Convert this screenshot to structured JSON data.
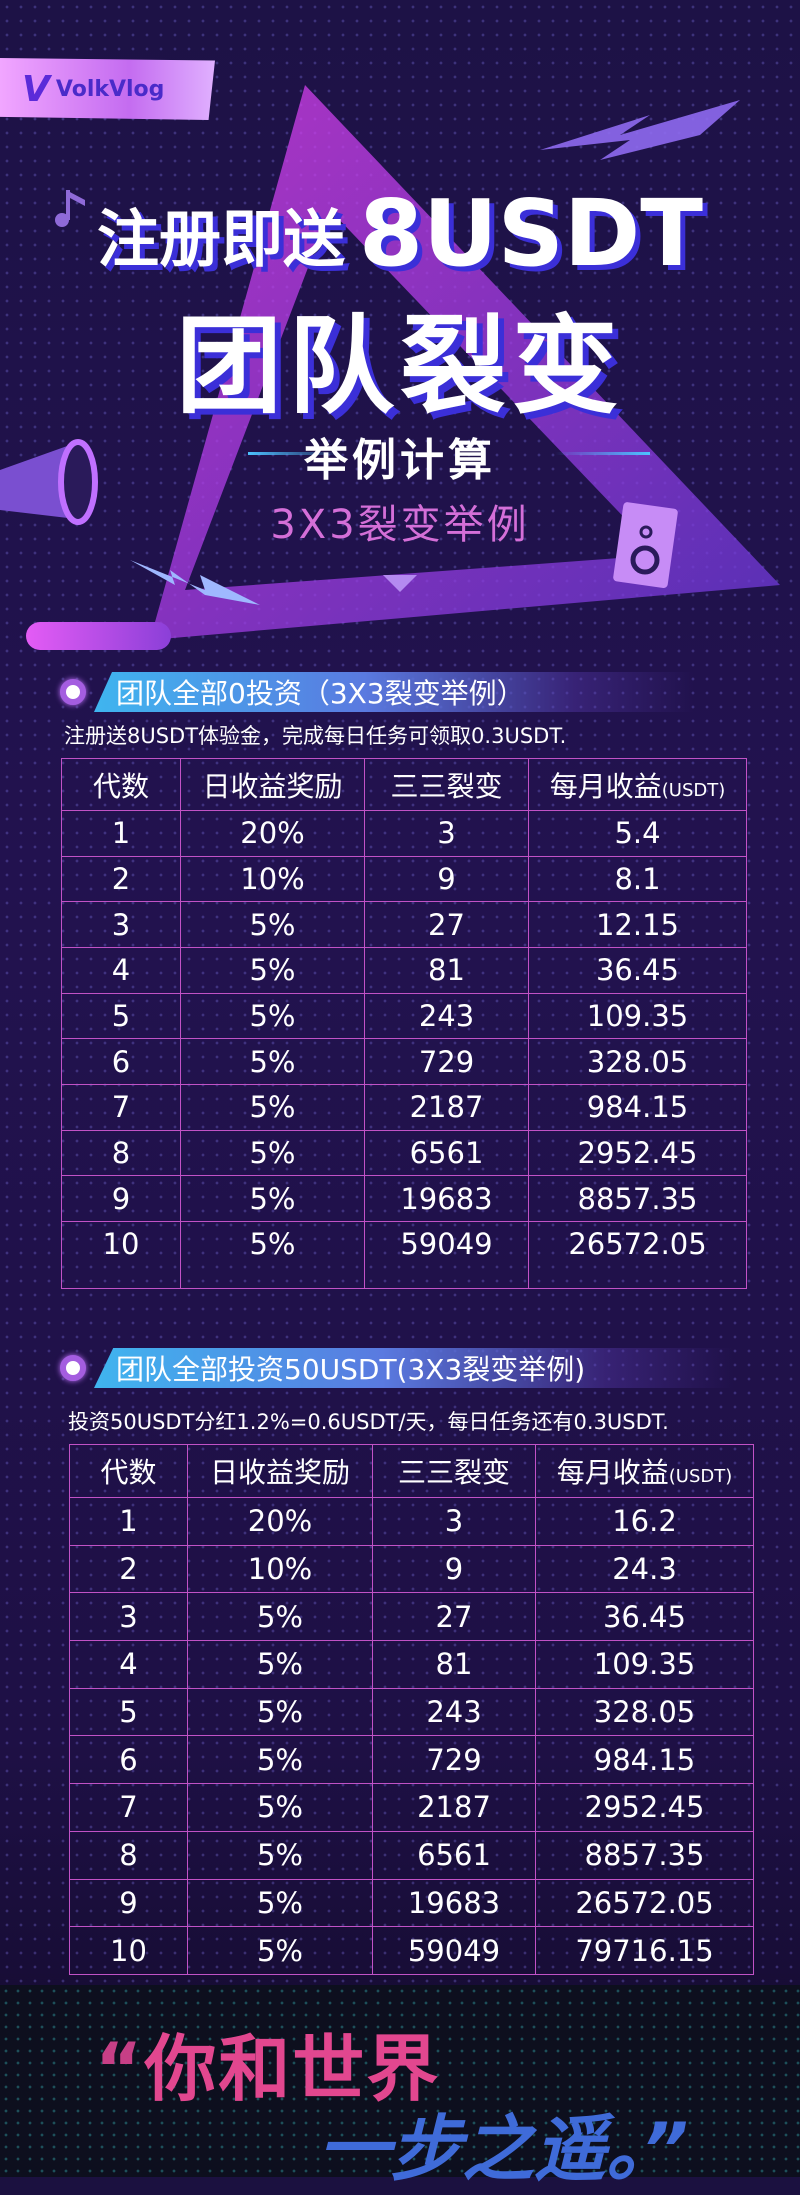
{
  "colors": {
    "background": "#1b1140",
    "accent_pink": "#d46fd8",
    "shadow_blue": "#3b2fd8",
    "table_border": "#c152c6",
    "footer_pink": "#e2478f",
    "footer_blue": "#3f6bd9"
  },
  "logo": {
    "mark": "V",
    "text": "VolkVlog"
  },
  "hero": {
    "line1_cn": "注册即送",
    "line1_big": "8USDT",
    "line2": "团队裂变",
    "subtitle": "举例计算",
    "example": "3X3裂变举例"
  },
  "sections": [
    {
      "title": "团队全部0投资（3X3裂变举例）",
      "note": "注册送8USDT体验金，完成每日任务可领取0.3USDT.",
      "headers": [
        "代数",
        "日收益奖励",
        "三三裂变",
        "每月收益"
      ],
      "unit": "(USDT)",
      "rows": [
        [
          "1",
          "20%",
          "3",
          "5.4"
        ],
        [
          "2",
          "10%",
          "9",
          "8.1"
        ],
        [
          "3",
          "5%",
          "27",
          "12.15"
        ],
        [
          "4",
          "5%",
          "81",
          "36.45"
        ],
        [
          "5",
          "5%",
          "243",
          "109.35"
        ],
        [
          "6",
          "5%",
          "729",
          "328.05"
        ],
        [
          "7",
          "5%",
          "2187",
          "984.15"
        ],
        [
          "8",
          "5%",
          "6561",
          "2952.45"
        ],
        [
          "9",
          "5%",
          "19683",
          "8857.35"
        ],
        [
          "10",
          "5%",
          "59049",
          "26572.05"
        ]
      ]
    },
    {
      "title": "团队全部投资50USDT(3X3裂变举例)",
      "note": "投资50USDT分红1.2%=0.6USDT/天，每日任务还有0.3USDT.",
      "headers": [
        "代数",
        "日收益奖励",
        "三三裂变",
        "每月收益"
      ],
      "unit": "(USDT)",
      "rows": [
        [
          "1",
          "20%",
          "3",
          "16.2"
        ],
        [
          "2",
          "10%",
          "9",
          "24.3"
        ],
        [
          "3",
          "5%",
          "27",
          "36.45"
        ],
        [
          "4",
          "5%",
          "81",
          "109.35"
        ],
        [
          "5",
          "5%",
          "243",
          "328.05"
        ],
        [
          "6",
          "5%",
          "729",
          "984.15"
        ],
        [
          "7",
          "5%",
          "2187",
          "2952.45"
        ],
        [
          "8",
          "5%",
          "6561",
          "8857.35"
        ],
        [
          "9",
          "5%",
          "19683",
          "26572.05"
        ],
        [
          "10",
          "5%",
          "59049",
          "79716.15"
        ]
      ]
    }
  ],
  "footer": {
    "open_quote": "“",
    "line1": "你和世界",
    "line2": "一步之遥。",
    "close_quote": "”"
  }
}
